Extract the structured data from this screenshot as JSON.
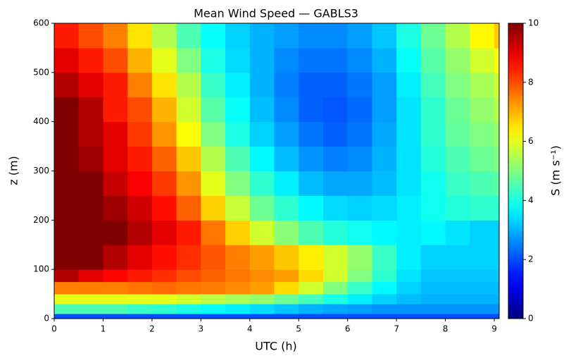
{
  "chart_data": {
    "type": "heatmap",
    "title": "Mean Wind Speed — GABLS3",
    "xlabel": "UTC (h)",
    "ylabel": "z (m)",
    "colorbar_label": "S (m s⁻¹)",
    "colormap": "jet",
    "x_edges": [
      0,
      0.5,
      1,
      1.5,
      2,
      2.5,
      3,
      3.5,
      4,
      4.5,
      5,
      5.5,
      6,
      6.5,
      7,
      7.5,
      8,
      8.5,
      9,
      9.1
    ],
    "y_edges": [
      0,
      10,
      30,
      50,
      75,
      100,
      150,
      200,
      250,
      300,
      350,
      400,
      450,
      500,
      550,
      600
    ],
    "z": [
      [
        2,
        2,
        2,
        2,
        2,
        2,
        2,
        2,
        2,
        2,
        2,
        2,
        2,
        2,
        2,
        2,
        2,
        2,
        2
      ],
      [
        4.5,
        4.5,
        4.5,
        4.3,
        4.2,
        4.0,
        3.8,
        3.6,
        3.4,
        3.2,
        3,
        2.9,
        2.8,
        2.7,
        2.7,
        2.7,
        2.7,
        2.7,
        2.7
      ],
      [
        6,
        6,
        6,
        6,
        6,
        5.8,
        5.6,
        5.4,
        5.2,
        4.8,
        4.4,
        4,
        3.6,
        3.3,
        3.1,
        3,
        3,
        3,
        3
      ],
      [
        7.5,
        7.5,
        7.5,
        7.6,
        7.7,
        7.6,
        7.5,
        7.4,
        7.2,
        6.6,
        5.8,
        5,
        4.3,
        3.7,
        3.3,
        3.1,
        3.1,
        3.1,
        3.1
      ],
      [
        9.5,
        9,
        8.7,
        8.5,
        8.3,
        8,
        7.8,
        7.6,
        7.4,
        7.2,
        6.6,
        5.8,
        5,
        4.2,
        3.5,
        3.2,
        3.2,
        3.2,
        3.2
      ],
      [
        10,
        10,
        9.5,
        9,
        8.6,
        8.3,
        7.9,
        7.5,
        7.2,
        6.8,
        6.4,
        5.8,
        5.2,
        4.3,
        3.6,
        3.3,
        3.3,
        3.3,
        3.3
      ],
      [
        10,
        10,
        10,
        9.5,
        9,
        8.5,
        7.6,
        6.7,
        5.8,
        5.1,
        4.5,
        4.1,
        3.9,
        3.7,
        3.6,
        3.7,
        3.5,
        3.3,
        3.3
      ],
      [
        10,
        10,
        9.7,
        9.2,
        8.6,
        7.8,
        6.7,
        5.7,
        4.8,
        4.2,
        3.7,
        3.4,
        3.3,
        3.4,
        3.6,
        3.9,
        4.1,
        4.2,
        4.2
      ],
      [
        10,
        10,
        9.3,
        8.8,
        8.2,
        7.3,
        6,
        5,
        4.2,
        3.6,
        3.1,
        2.9,
        2.9,
        3.1,
        3.5,
        3.9,
        4.3,
        4.5,
        4.6
      ],
      [
        10,
        9.7,
        9,
        8.5,
        7.8,
        6.8,
        5.5,
        4.5,
        3.7,
        3.1,
        2.7,
        2.5,
        2.6,
        3,
        3.5,
        4.1,
        4.5,
        4.8,
        5
      ],
      [
        10,
        9.5,
        9,
        8.2,
        7.3,
        6.2,
        5,
        4,
        3.3,
        2.8,
        2.4,
        2.2,
        2.4,
        2.9,
        3.5,
        4.2,
        4.7,
        5,
        5.2
      ],
      [
        10,
        9.5,
        8.5,
        8,
        7,
        5.8,
        4.6,
        3.8,
        3.1,
        2.6,
        2.2,
        2.1,
        2.3,
        2.8,
        3.5,
        4.2,
        4.8,
        5.2,
        5.5
      ],
      [
        9.5,
        9,
        8.5,
        7.5,
        6.5,
        5.5,
        4.3,
        3.6,
        3,
        2.5,
        2.2,
        2.2,
        2.4,
        2.8,
        3.6,
        4.4,
        5,
        5.4,
        5.8
      ],
      [
        9,
        8.5,
        8,
        7,
        6,
        5,
        4,
        3.4,
        3,
        2.6,
        2.4,
        2.4,
        2.6,
        3,
        3.8,
        4.6,
        5.2,
        5.8,
        6.2
      ],
      [
        8.5,
        8,
        7.5,
        6.5,
        5.5,
        4.5,
        3.8,
        3.3,
        3,
        2.8,
        2.6,
        2.6,
        2.8,
        3.2,
        4,
        4.8,
        5.5,
        6.3,
        6.8
      ]
    ],
    "xlim": [
      0,
      9.1
    ],
    "xticks": [
      0,
      1,
      2,
      3,
      4,
      5,
      6,
      7,
      8,
      9
    ],
    "ylim": [
      0,
      600
    ],
    "yticks": [
      0,
      100,
      200,
      300,
      400,
      500,
      600
    ],
    "clim": [
      0,
      10
    ],
    "cticks": [
      0,
      2,
      4,
      6,
      8,
      10
    ]
  }
}
